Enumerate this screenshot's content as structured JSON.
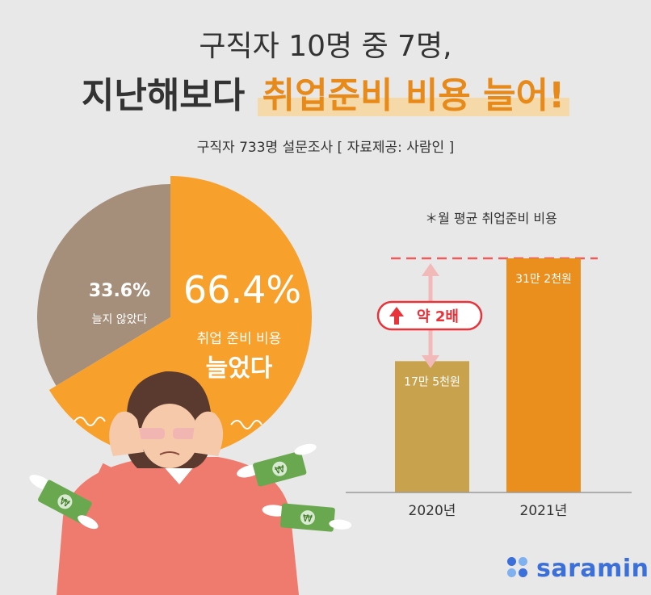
{
  "header": {
    "title_line1": "구직자 10명 중 7명,",
    "title_line2_prefix": "지난해보다",
    "title_line2_highlight": "취업준비 비용 늘어!",
    "subtitle": "구직자 733명 설문조사  [ 자료제공: 사람인 ]"
  },
  "colors": {
    "orange": "#f7a12c",
    "brown": "#a58f7b",
    "bar_2020": "#c9a24d",
    "bar_2021": "#ea8f1e",
    "arrow_red": "#e8333a",
    "dashed_line": "#ee5b5b",
    "brand_blue": "#3b6fd9"
  },
  "chart_data": [
    {
      "type": "pie",
      "slices": [
        {
          "label_line1": "취업 준비 비용",
          "label_line2": "늘었다",
          "value": 66.4,
          "display": "66.4%"
        },
        {
          "label_line1": "늘지 않았다",
          "value": 33.6,
          "display": "33.6%"
        }
      ]
    },
    {
      "type": "bar",
      "note": "＊월 평균 취업준비 비용",
      "categories": [
        "2020년",
        "2021년"
      ],
      "values": [
        175000,
        312000
      ],
      "value_labels": [
        "17만 5천원",
        "31만 2천원"
      ],
      "annotation": "약 2배"
    }
  ],
  "logo": {
    "text": "saramin"
  }
}
